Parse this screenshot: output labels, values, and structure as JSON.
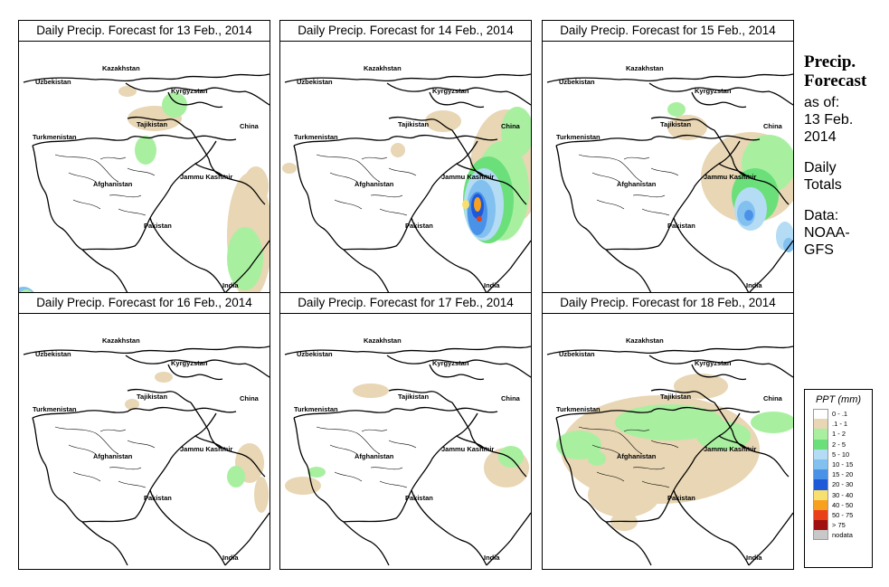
{
  "panels": [
    {
      "title": "Daily Precip. Forecast for  13 Feb., 2014"
    },
    {
      "title": "Daily Precip. Forecast for  14 Feb., 2014"
    },
    {
      "title": "Daily Precip. Forecast for  15 Feb., 2014"
    },
    {
      "title": "Daily Precip. Forecast for  16 Feb., 2014"
    },
    {
      "title": "Daily Precip. Forecast for  17 Feb., 2014"
    },
    {
      "title": "Daily Precip. Forecast for  18 Feb., 2014"
    }
  ],
  "map_labels": {
    "kazakhstan": "Kazakhstan",
    "uzbekistan": "Uzbekistan",
    "kyrgyzstan": "Kyrgyzstan",
    "tajikistan": "Tajikistan",
    "turkmenistan": "Turkmenistan",
    "china": "China",
    "afghanistan": "Afghanistan",
    "jammu_kashmir": "Jammu Kashmir",
    "pakistan": "Pakistan",
    "india": "India"
  },
  "sidebar": {
    "heading_line1": "Precip.",
    "heading_line2": "Forecast",
    "asof_line1": "as of:",
    "asof_line2": "13 Feb.",
    "asof_line3": "2014",
    "daily_line1": "Daily",
    "daily_line2": "Totals",
    "data_line1": "Data:",
    "data_line2": "NOAA-",
    "data_line3": "GFS"
  },
  "legend": {
    "title": "PPT (mm)",
    "bins": [
      {
        "label": "0 - .1",
        "color": "#ffffff"
      },
      {
        "label": ".1 - 1",
        "color": "#e8d6b4"
      },
      {
        "label": "1 - 2",
        "color": "#a8f0a0"
      },
      {
        "label": "2 - 5",
        "color": "#6be07a"
      },
      {
        "label": "5 - 10",
        "color": "#b4dcf4"
      },
      {
        "label": "10 - 15",
        "color": "#82c0f0"
      },
      {
        "label": "15 - 20",
        "color": "#4a92e8"
      },
      {
        "label": "20 - 30",
        "color": "#1e5ad8"
      },
      {
        "label": "30 - 40",
        "color": "#f8e070"
      },
      {
        "label": "40 - 50",
        "color": "#f8a020"
      },
      {
        "label": "50 - 75",
        "color": "#e84018"
      },
      {
        "label": "> 75",
        "color": "#a01010"
      },
      {
        "label": "nodata",
        "color": "#c8c8c8"
      }
    ]
  }
}
